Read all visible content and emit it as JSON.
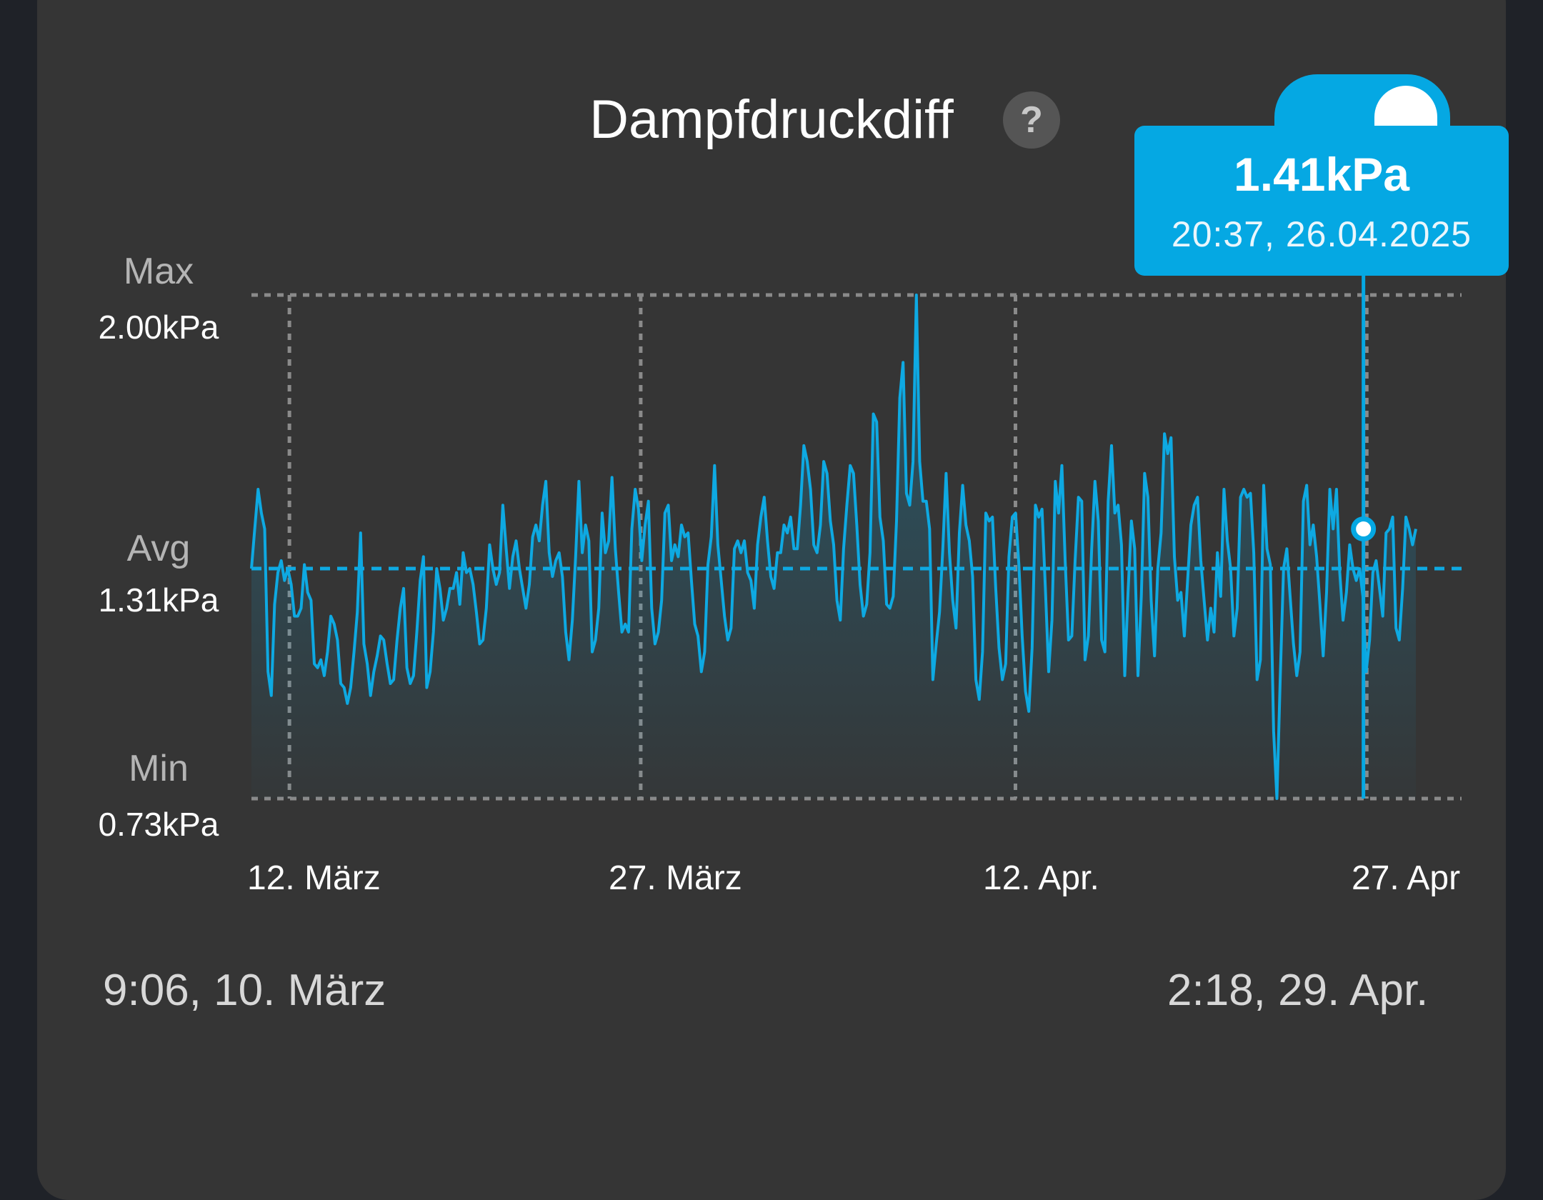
{
  "card": {
    "title": "Dampfdruckdiff",
    "help_icon_glyph": "?",
    "help_icon": "question-circle-icon"
  },
  "stats": {
    "max_label": "Max",
    "max_value": "2.00kPa",
    "avg_label": "Avg",
    "avg_value": "1.31kPa",
    "min_label": "Min",
    "min_value": "0.73kPa"
  },
  "x_axis": {
    "ticks": [
      "12. März",
      "27. März",
      "12. Apr.",
      "27. Apr"
    ]
  },
  "range": {
    "start": "9:06,  10. März",
    "end": "2:18,  29. Apr."
  },
  "tooltip": {
    "value": "1.41kPa",
    "time": "20:37,  26.04.2025"
  },
  "colors": {
    "line": "#0ea9e2",
    "accent": "#05a8e3",
    "background": "#353535",
    "grid": "#8a8a8a"
  },
  "chart_data": {
    "type": "line",
    "y_unit": "kPa",
    "ylim": [
      0.73,
      2.0
    ],
    "avg": 1.31,
    "x_range": [
      "2025-03-10 09:06",
      "2025-04-29 02:18"
    ],
    "x_tick_dates": [
      "2025-03-12",
      "2025-03-27",
      "2025-04-12",
      "2025-04-27"
    ],
    "selected_point": {
      "x": "2025-04-26 20:37",
      "y": 1.41
    },
    "grid": true,
    "series": [
      {
        "values": [
          1.31,
          1.41,
          1.51,
          1.45,
          1.41,
          1.05,
          0.99,
          1.22,
          1.3,
          1.33,
          1.28,
          1.31,
          1.27,
          1.19,
          1.19,
          1.21,
          1.32,
          1.25,
          1.23,
          1.07,
          1.06,
          1.08,
          1.04,
          1.1,
          1.19,
          1.17,
          1.13,
          1.02,
          1.01,
          0.97,
          1.01,
          1.1,
          1.2,
          1.4,
          1.12,
          1.07,
          0.99,
          1.05,
          1.09,
          1.14,
          1.13,
          1.07,
          1.02,
          1.03,
          1.13,
          1.21,
          1.26,
          1.06,
          1.02,
          1.04,
          1.15,
          1.28,
          1.34,
          1.01,
          1.05,
          1.15,
          1.31,
          1.26,
          1.18,
          1.21,
          1.26,
          1.26,
          1.3,
          1.22,
          1.35,
          1.3,
          1.31,
          1.27,
          1.2,
          1.12,
          1.13,
          1.21,
          1.37,
          1.31,
          1.27,
          1.3,
          1.47,
          1.36,
          1.26,
          1.34,
          1.38,
          1.31,
          1.26,
          1.21,
          1.27,
          1.39,
          1.42,
          1.38,
          1.47,
          1.53,
          1.35,
          1.29,
          1.33,
          1.35,
          1.29,
          1.15,
          1.08,
          1.18,
          1.34,
          1.53,
          1.35,
          1.42,
          1.38,
          1.1,
          1.13,
          1.21,
          1.45,
          1.35,
          1.38,
          1.54,
          1.36,
          1.25,
          1.15,
          1.17,
          1.15,
          1.41,
          1.51,
          1.46,
          1.33,
          1.42,
          1.48,
          1.21,
          1.12,
          1.15,
          1.23,
          1.45,
          1.47,
          1.33,
          1.37,
          1.34,
          1.42,
          1.39,
          1.4,
          1.28,
          1.17,
          1.14,
          1.05,
          1.1,
          1.32,
          1.39,
          1.57,
          1.37,
          1.28,
          1.19,
          1.13,
          1.16,
          1.36,
          1.38,
          1.35,
          1.38,
          1.3,
          1.28,
          1.21,
          1.37,
          1.44,
          1.49,
          1.38,
          1.29,
          1.26,
          1.35,
          1.35,
          1.42,
          1.4,
          1.44,
          1.36,
          1.36,
          1.47,
          1.62,
          1.58,
          1.51,
          1.37,
          1.35,
          1.42,
          1.58,
          1.55,
          1.43,
          1.37,
          1.23,
          1.18,
          1.36,
          1.47,
          1.57,
          1.55,
          1.42,
          1.27,
          1.19,
          1.22,
          1.35,
          1.7,
          1.68,
          1.44,
          1.38,
          1.22,
          1.21,
          1.24,
          1.43,
          1.74,
          1.83,
          1.5,
          1.47,
          1.58,
          2.0,
          1.58,
          1.48,
          1.48,
          1.41,
          1.03,
          1.12,
          1.2,
          1.36,
          1.55,
          1.35,
          1.23,
          1.16,
          1.4,
          1.52,
          1.42,
          1.38,
          1.29,
          1.03,
          0.98,
          1.1,
          1.45,
          1.43,
          1.44,
          1.26,
          1.11,
          1.03,
          1.07,
          1.34,
          1.44,
          1.45,
          1.32,
          1.14,
          1.0,
          0.95,
          1.11,
          1.47,
          1.44,
          1.46,
          1.26,
          1.05,
          1.18,
          1.53,
          1.45,
          1.57,
          1.33,
          1.13,
          1.14,
          1.33,
          1.49,
          1.48,
          1.08,
          1.14,
          1.36,
          1.53,
          1.43,
          1.13,
          1.1,
          1.48,
          1.62,
          1.45,
          1.47,
          1.37,
          1.04,
          1.25,
          1.43,
          1.36,
          1.04,
          1.24,
          1.55,
          1.49,
          1.23,
          1.09,
          1.31,
          1.4,
          1.65,
          1.6,
          1.64,
          1.34,
          1.23,
          1.25,
          1.14,
          1.28,
          1.42,
          1.47,
          1.49,
          1.33,
          1.23,
          1.13,
          1.21,
          1.15,
          1.35,
          1.24,
          1.51,
          1.38,
          1.31,
          1.14,
          1.21,
          1.49,
          1.51,
          1.49,
          1.5,
          1.35,
          1.03,
          1.08,
          1.52,
          1.36,
          1.32,
          0.9,
          0.73,
          1.03,
          1.31,
          1.36,
          1.24,
          1.12,
          1.04,
          1.1,
          1.48,
          1.52,
          1.37,
          1.42,
          1.34,
          1.22,
          1.09,
          1.25,
          1.51,
          1.41,
          1.51,
          1.3,
          1.18,
          1.25,
          1.37,
          1.31,
          1.28,
          1.31,
          1.24,
          1.05,
          1.13,
          1.3,
          1.33,
          1.26,
          1.19,
          1.4,
          1.41,
          1.44,
          1.16,
          1.13,
          1.26,
          1.44,
          1.41,
          1.37,
          1.41
        ]
      }
    ]
  }
}
